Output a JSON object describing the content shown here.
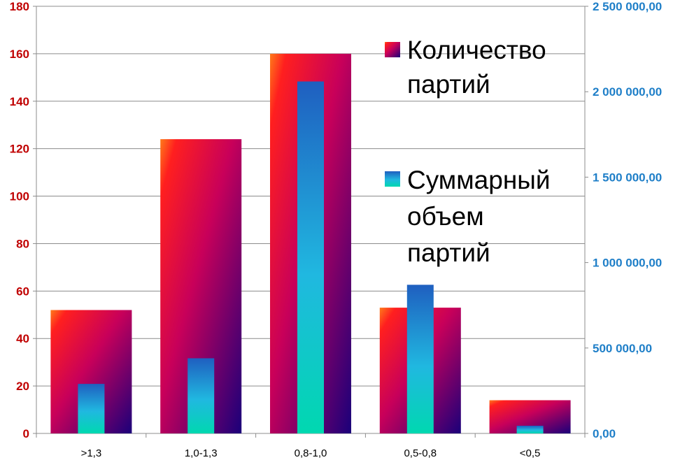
{
  "chart_data": {
    "type": "bar",
    "categories": [
      ">1,3",
      "1,0-1,3",
      "0,8-1,0",
      "0,5-0,8",
      "<0,5"
    ],
    "series": [
      {
        "name": "Количество партий",
        "axis": "left",
        "values": [
          52,
          124,
          160,
          53,
          14
        ]
      },
      {
        "name": "Суммарный объем партий",
        "axis": "right",
        "values": [
          290000,
          440000,
          2060000,
          870000,
          45000
        ]
      }
    ],
    "left_axis": {
      "ylim": [
        0,
        180
      ],
      "ticks": [
        "0",
        "20",
        "40",
        "60",
        "80",
        "100",
        "120",
        "140",
        "160",
        "180"
      ],
      "color": "#c00000"
    },
    "right_axis": {
      "ylim": [
        0,
        2500000
      ],
      "ticks": [
        "0,00",
        "500 000,00",
        "1 000 000,00",
        "1 500 000,00",
        "2 000 000,00",
        "2 500 000,00"
      ],
      "color": "#1f7fc8"
    },
    "legend": {
      "placement": "top-right, inside plot",
      "entries": [
        {
          "lines": [
            "Количество",
            "партий"
          ]
        },
        {
          "lines": [
            "Суммарный",
            "объем",
            "партий"
          ]
        }
      ]
    },
    "grid": true,
    "title": "",
    "xlabel": "",
    "ylabel": ""
  }
}
